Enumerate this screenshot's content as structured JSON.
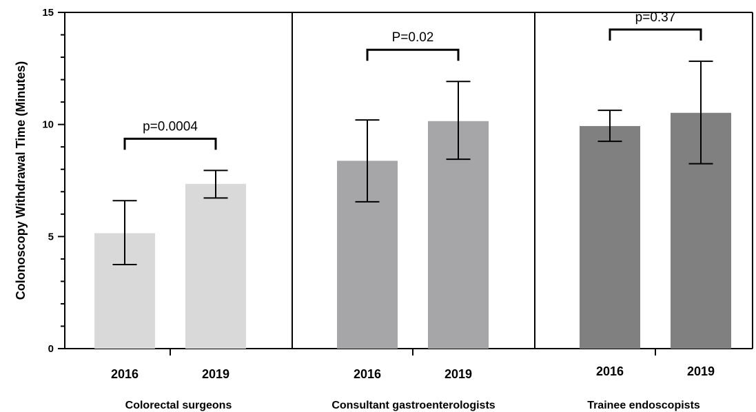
{
  "chart_data": {
    "type": "bar",
    "ylabel": "Colonoscopy Withdrawal Time (Minutes)",
    "ylim": [
      0,
      15
    ],
    "yticks": [
      0,
      5,
      10,
      15
    ],
    "grid": false,
    "groups": [
      {
        "name": "Colorectal surgeons",
        "color": "#d9d9d9",
        "bars": [
          {
            "category": "2016",
            "value": 5.15,
            "err_low": 3.75,
            "err_high": 6.6
          },
          {
            "category": "2019",
            "value": 7.35,
            "err_low": 6.72,
            "err_high": 7.95
          }
        ],
        "p_value": "p=0.0004"
      },
      {
        "name": "Consultant gastroenterologists",
        "color": "#a6a6a9",
        "bars": [
          {
            "category": "2016",
            "value": 8.38,
            "err_low": 6.55,
            "err_high": 10.2
          },
          {
            "category": "2019",
            "value": 10.15,
            "err_low": 8.45,
            "err_high": 11.92
          }
        ],
        "p_value": "P=0.02"
      },
      {
        "name": "Trainee endoscopists",
        "color": "#808080",
        "bars": [
          {
            "category": "2016",
            "value": 9.93,
            "err_low": 9.25,
            "err_high": 10.63
          },
          {
            "category": "2019",
            "value": 10.52,
            "err_low": 8.25,
            "err_high": 12.82
          }
        ],
        "p_value": "p=0.37"
      }
    ]
  }
}
